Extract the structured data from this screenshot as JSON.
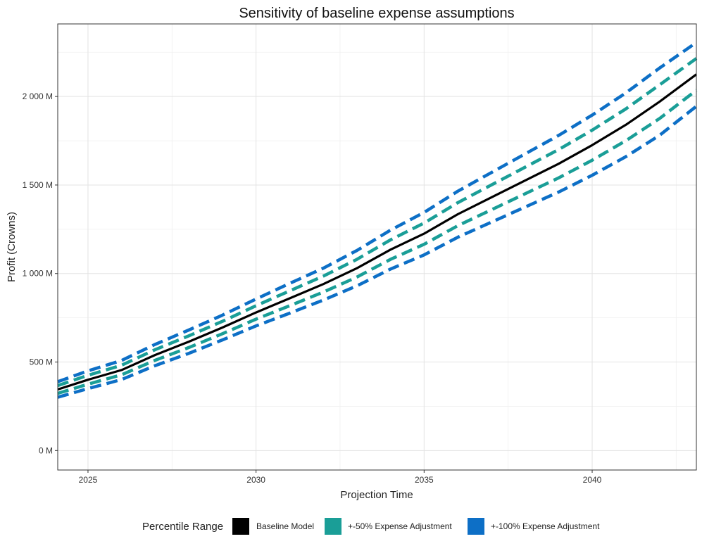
{
  "chart_data": {
    "type": "line",
    "title": "Sensitivity of baseline expense assumptions",
    "xlabel": "Projection Time",
    "ylabel": "Profit (Crowns)",
    "xlim": [
      2024.1,
      2043.1
    ],
    "ylim": [
      -110,
      2410
    ],
    "x_ticks": [
      2025,
      2030,
      2035,
      2040
    ],
    "x_tick_labels": [
      "2025",
      "2030",
      "2035",
      "2040"
    ],
    "y_ticks": [
      0,
      500,
      1000,
      1500,
      2000
    ],
    "y_tick_labels": [
      "0 M",
      "500 M",
      "1 000 M",
      "1 500 M",
      "2 000 M"
    ],
    "grid": true,
    "legend_position": "bottom",
    "legend_title": "Percentile Range",
    "legend": [
      {
        "label": "Baseline Model",
        "color": "#000000"
      },
      {
        "label": "+-50% Expense Adjustment",
        "color": "#1a9e97"
      },
      {
        "label": "+-100% Expense Adjustment",
        "color": "#0d6fc6"
      }
    ],
    "x": [
      2024.1,
      2025,
      2026,
      2027,
      2028,
      2029,
      2030,
      2031,
      2032,
      2033,
      2034,
      2035,
      2036,
      2037,
      2038,
      2039,
      2040,
      2041,
      2042,
      2043.1
    ],
    "series": [
      {
        "group": "Baseline Model",
        "style": "solid",
        "color": "#000000",
        "values": [
          345,
          400,
          455,
          540,
          615,
          695,
          780,
          860,
          940,
          1030,
          1135,
          1225,
          1335,
          1430,
          1525,
          1620,
          1725,
          1840,
          1970,
          2125
        ]
      },
      {
        "group": "+-50% Expense Adjustment",
        "style": "dashed",
        "color": "#1a9e97",
        "values": [
          367,
          425,
          482,
          570,
          648,
          730,
          818,
          902,
          985,
          1080,
          1190,
          1285,
          1400,
          1500,
          1600,
          1700,
          1810,
          1930,
          2065,
          2215
        ]
      },
      {
        "group": "+-50% Expense Adjustment",
        "style": "dashed",
        "color": "#1a9e97",
        "values": [
          323,
          375,
          428,
          510,
          582,
          660,
          742,
          818,
          895,
          980,
          1080,
          1165,
          1270,
          1360,
          1450,
          1540,
          1640,
          1750,
          1875,
          2035
        ]
      },
      {
        "group": "+-100% Expense Adjustment",
        "style": "dashed",
        "color": "#0d6fc6",
        "values": [
          389,
          450,
          509,
          600,
          681,
          765,
          856,
          944,
          1030,
          1130,
          1245,
          1345,
          1465,
          1570,
          1675,
          1780,
          1895,
          2020,
          2160,
          2305
        ]
      },
      {
        "group": "+-100% Expense Adjustment",
        "style": "dashed",
        "color": "#0d6fc6",
        "values": [
          301,
          350,
          401,
          480,
          549,
          625,
          704,
          776,
          850,
          930,
          1025,
          1105,
          1205,
          1290,
          1375,
          1460,
          1555,
          1660,
          1780,
          1945
        ]
      }
    ]
  }
}
